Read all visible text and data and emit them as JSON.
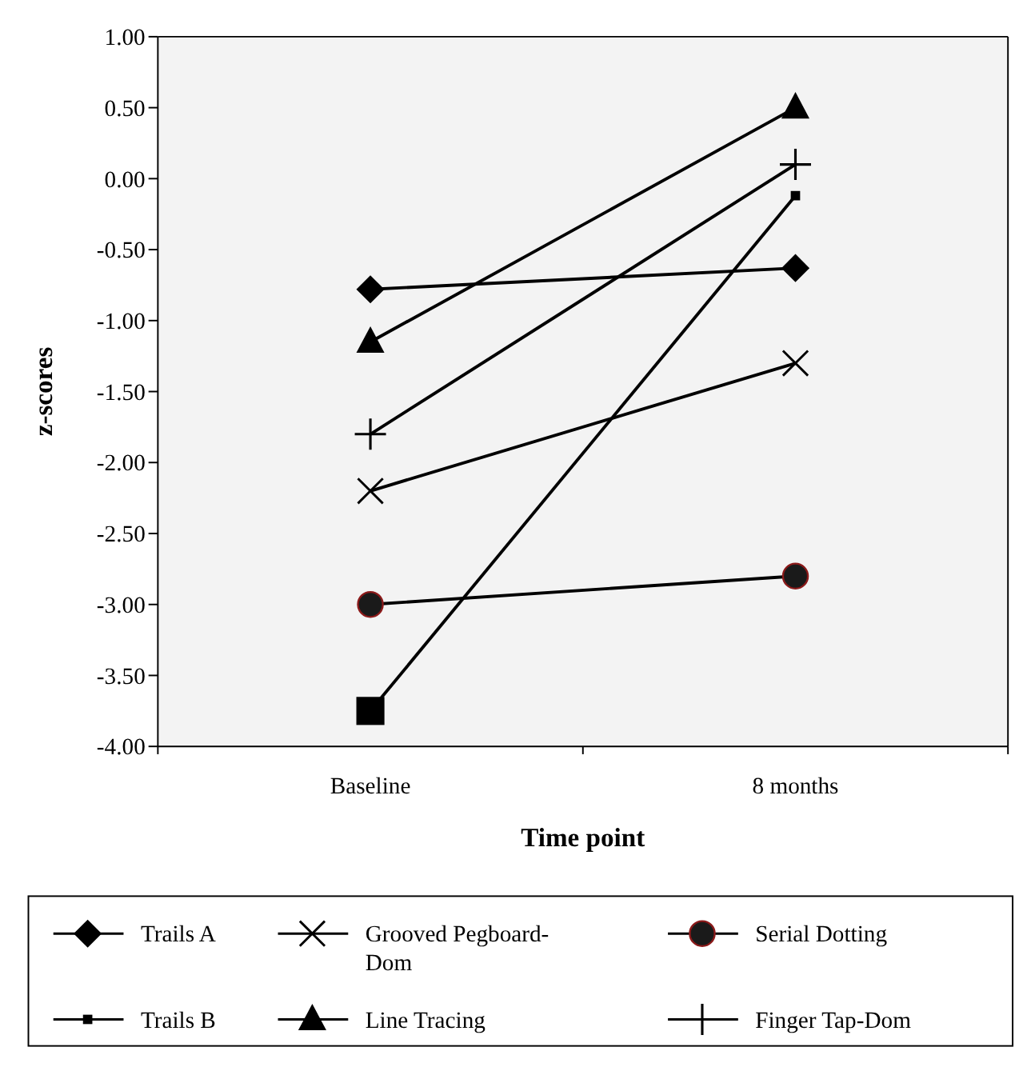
{
  "chart_data": {
    "type": "line",
    "xlabel": "Time point",
    "ylabel": "z-scores",
    "categories": [
      "Baseline",
      "8 months"
    ],
    "ylim": [
      -4,
      1
    ],
    "yticks": [
      {
        "value": 1,
        "label": "1.00"
      },
      {
        "value": 0.5,
        "label": "0.50"
      },
      {
        "value": 0,
        "label": "0.00"
      },
      {
        "value": -0.5,
        "label": "-0.50"
      },
      {
        "value": -1,
        "label": "-1.00"
      },
      {
        "value": -1.5,
        "label": "-1.50"
      },
      {
        "value": -2,
        "label": "-2.00"
      },
      {
        "value": -2.5,
        "label": "-2.50"
      },
      {
        "value": -3,
        "label": "-3.00"
      },
      {
        "value": -3.5,
        "label": "-3.50"
      },
      {
        "value": -4,
        "label": "-4.00"
      }
    ],
    "grid": false,
    "legend": "bottom",
    "series": [
      {
        "name": "Trails A",
        "color": "#000000",
        "marker": "diamond",
        "values": [
          -0.78,
          -0.63
        ]
      },
      {
        "name": "Trails B",
        "color": "#000000",
        "marker": "square",
        "values": [
          -3.75,
          -0.12
        ]
      },
      {
        "name": "Grooved Pegboard-Dom",
        "color": "#000000",
        "marker": "cross",
        "values": [
          -2.2,
          -1.3
        ]
      },
      {
        "name": "Line Tracing",
        "color": "#000000",
        "marker": "triangle",
        "values": [
          -1.15,
          0.5
        ]
      },
      {
        "name": "Serial Dotting",
        "color": "#000000",
        "marker": "circle",
        "values": [
          -3.0,
          -2.8
        ]
      },
      {
        "name": "Finger Tap-Dom",
        "color": "#000000",
        "marker": "plus",
        "values": [
          -1.8,
          0.1
        ]
      }
    ]
  }
}
